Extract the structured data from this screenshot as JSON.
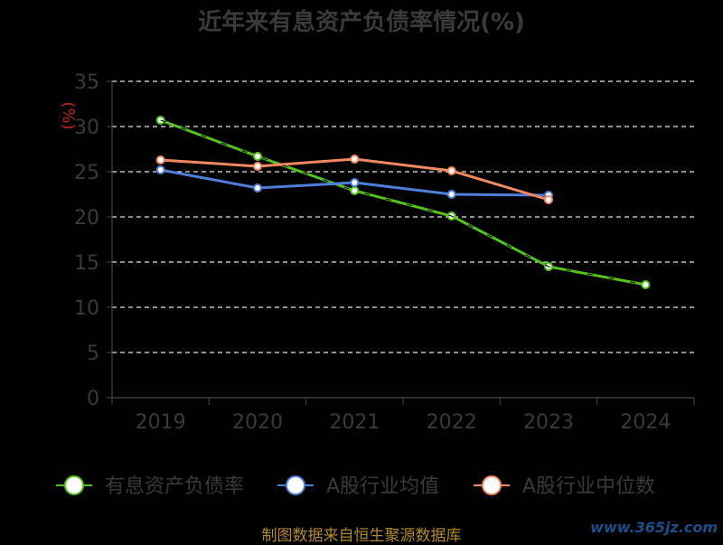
{
  "title": "近年来有息资产负债率情况(%)",
  "source": "制图数据来自恒生聚源数据库",
  "watermark": "www.365jz.com",
  "chart_data": {
    "type": "line",
    "title": "近年来有息资产负债率情况(%)",
    "xlabel": "",
    "ylabel": "(%)",
    "categories": [
      "2019",
      "2020",
      "2021",
      "2022",
      "2023",
      "2024"
    ],
    "ylim": [
      0,
      35
    ],
    "yticks": [
      0,
      5,
      10,
      15,
      20,
      25,
      30,
      35
    ],
    "grid": true,
    "legend_position": "bottom",
    "series": [
      {
        "name": "有息资产负债率",
        "color": "#52c41a",
        "values": [
          30.7,
          26.7,
          22.9,
          20.1,
          14.5,
          12.5
        ]
      },
      {
        "name": "A股行业均值",
        "color": "#4e7fdb",
        "values": [
          25.2,
          23.2,
          23.8,
          22.5,
          22.4,
          null
        ]
      },
      {
        "name": "A股行业中位数",
        "color": "#f4895f",
        "values": [
          26.3,
          25.6,
          26.4,
          25.1,
          21.9,
          null
        ]
      }
    ]
  }
}
